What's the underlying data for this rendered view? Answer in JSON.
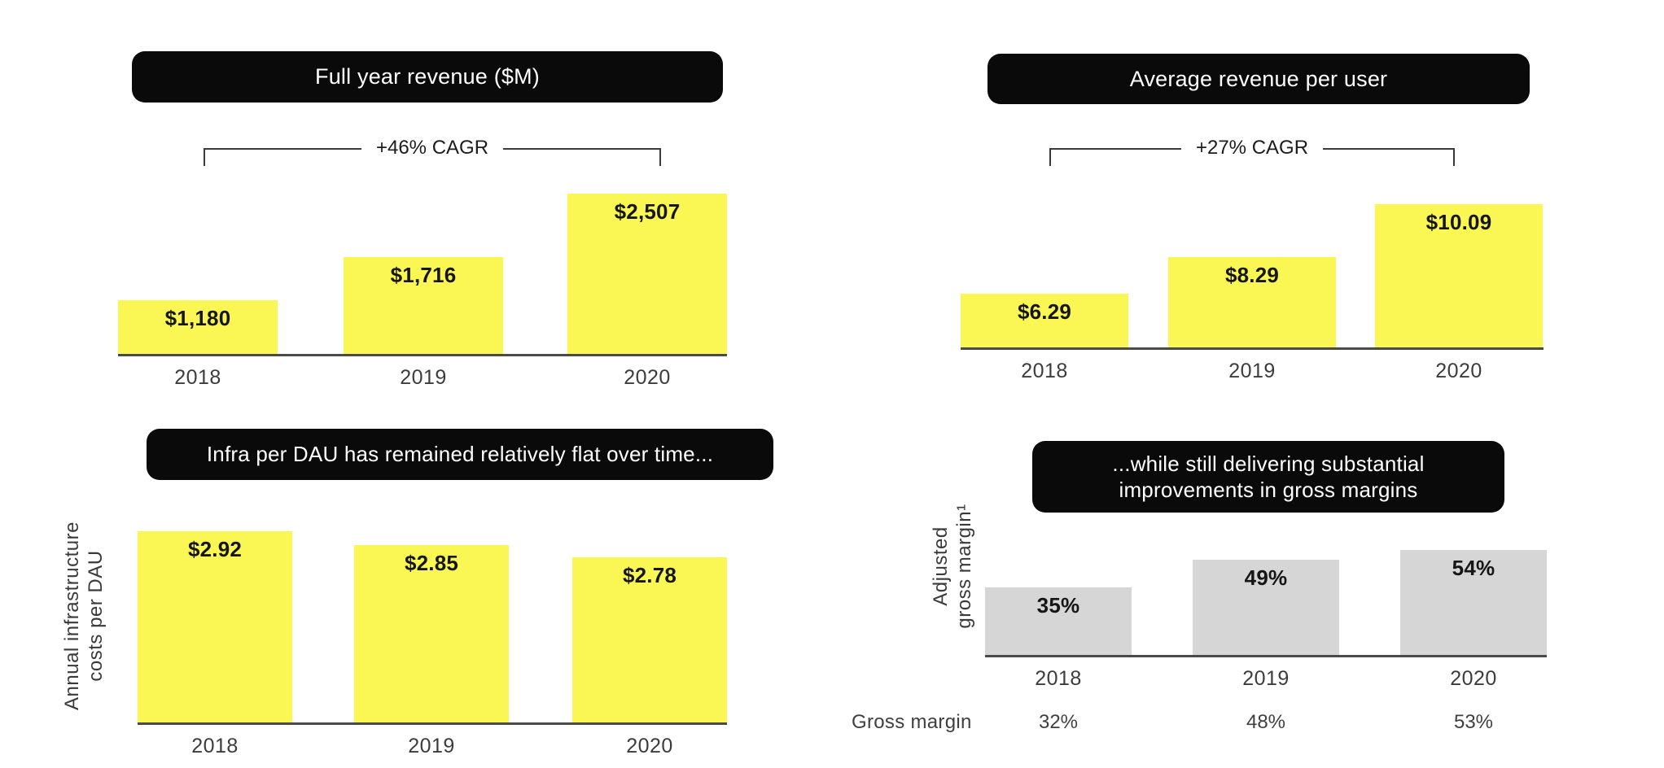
{
  "page": {
    "background": "#ffffff"
  },
  "colors": {
    "bar_yellow": "#faf754",
    "bar_gray": "#d6d6d6",
    "pill_bg": "#0a0a0a",
    "pill_text": "#ffffff",
    "axis_line": "#4a4a4a",
    "value_label": "#161616",
    "year_label": "#3c3c3c",
    "muted_text": "#3f3f3f"
  },
  "chart_data": [
    {
      "id": "revenue",
      "type": "bar",
      "title": "Full year revenue ($M)",
      "annotation": "+46% CAGR",
      "categories": [
        "2018",
        "2019",
        "2020"
      ],
      "values": [
        1180,
        1716,
        2507
      ],
      "value_labels": [
        "$1,180",
        "$1,716",
        "$2,507"
      ],
      "bar_color": "#faf754",
      "xlabel": "",
      "ylabel": "",
      "legend": "none",
      "grid": false
    },
    {
      "id": "arpu",
      "type": "bar",
      "title": "Average revenue per user",
      "annotation": "+27% CAGR",
      "categories": [
        "2018",
        "2019",
        "2020"
      ],
      "values": [
        6.29,
        8.29,
        10.09
      ],
      "value_labels": [
        "$6.29",
        "$8.29",
        "$10.09"
      ],
      "bar_color": "#faf754",
      "xlabel": "",
      "ylabel": "",
      "legend": "none",
      "grid": false
    },
    {
      "id": "infra",
      "type": "bar",
      "title": "Infra per DAU has remained relatively flat over time...",
      "categories": [
        "2018",
        "2019",
        "2020"
      ],
      "values": [
        2.92,
        2.85,
        2.78
      ],
      "value_labels": [
        "$2.92",
        "$2.85",
        "$2.78"
      ],
      "bar_color": "#faf754",
      "xlabel": "",
      "ylabel": "Annual infrastructure costs per DAU",
      "ylabel_lines": [
        "Annual infrastructure",
        "costs per DAU"
      ],
      "legend": "none",
      "grid": false
    },
    {
      "id": "margin",
      "type": "bar",
      "title": "...while still delivering substantial improvements in gross margins",
      "title_lines": [
        "...while still delivering substantial",
        "improvements in gross margins"
      ],
      "categories": [
        "2018",
        "2019",
        "2020"
      ],
      "values": [
        35,
        49,
        54
      ],
      "value_labels": [
        "35%",
        "49%",
        "54%"
      ],
      "bar_color": "#d6d6d6",
      "xlabel": "",
      "ylabel": "Adjusted gross margin¹",
      "ylabel_lines": [
        "Adjusted",
        "gross margin¹"
      ],
      "legend": "none",
      "grid": false,
      "footnote_row": {
        "label": "Gross margin",
        "values": [
          "32%",
          "48%",
          "53%"
        ]
      }
    }
  ]
}
